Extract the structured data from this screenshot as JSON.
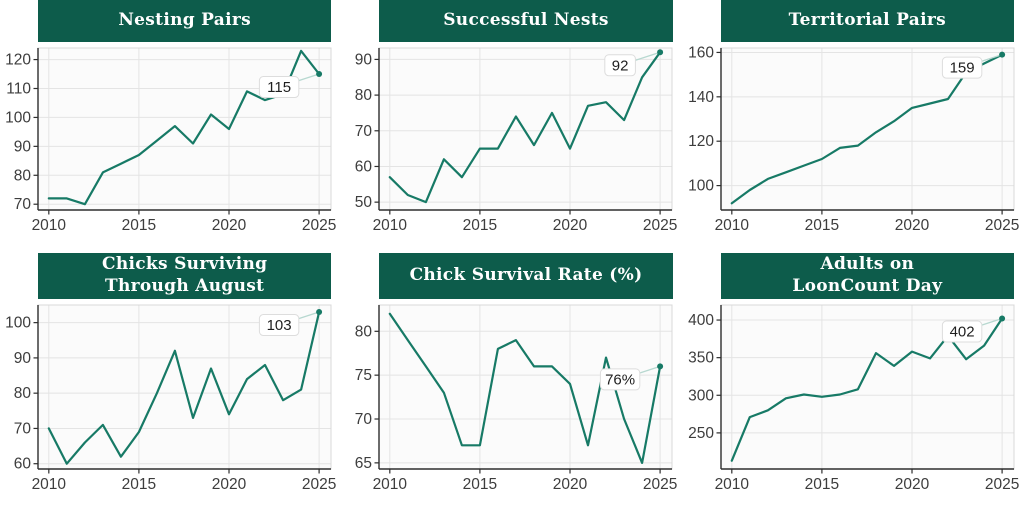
{
  "style": {
    "header_bg": "#0d5c4b",
    "header_text": "#ffffff",
    "line_color": "#177a66",
    "grid_color": "#e4e4e4",
    "plot_bg": "#fbfbfb",
    "plot_border": "#d8d8d8",
    "axis_color": "#2e2e2e",
    "tick_text": "#3d3d3d",
    "label_bg": "#ffffff",
    "label_border": "#dddddd",
    "label_text": "#1f1f1f",
    "connector": "#b7d8d0",
    "page_bg": "#ffffff"
  },
  "chart_data": [
    {
      "type": "line",
      "title": "Nesting Pairs",
      "x": [
        2010,
        2011,
        2012,
        2013,
        2014,
        2015,
        2016,
        2017,
        2018,
        2019,
        2020,
        2021,
        2022,
        2023,
        2024,
        2025
      ],
      "values": [
        72,
        72,
        70,
        81,
        84,
        87,
        92,
        97,
        91,
        101,
        96,
        109,
        106,
        108,
        123,
        115
      ],
      "end_label": "115",
      "xticks": [
        2010,
        2015,
        2020,
        2025
      ],
      "yticks": [
        70,
        80,
        90,
        100,
        110,
        120
      ],
      "xlim": [
        2009.4,
        2025.66
      ],
      "ylim": [
        68,
        124
      ],
      "grid": true,
      "legend": "none"
    },
    {
      "type": "line",
      "title": "Successful Nests",
      "x": [
        2010,
        2011,
        2012,
        2013,
        2014,
        2015,
        2016,
        2017,
        2018,
        2019,
        2020,
        2021,
        2022,
        2023,
        2024,
        2025
      ],
      "values": [
        57,
        52,
        50,
        62,
        57,
        65,
        65,
        74,
        66,
        75,
        65,
        77,
        78,
        73,
        85,
        92
      ],
      "end_label": "92",
      "xticks": [
        2010,
        2015,
        2020,
        2025
      ],
      "yticks": [
        50,
        60,
        70,
        80,
        90
      ],
      "xlim": [
        2009.4,
        2025.66
      ],
      "ylim": [
        47.8,
        93.2
      ],
      "grid": true,
      "legend": "none"
    },
    {
      "type": "line",
      "title": "Territorial Pairs",
      "x": [
        2010,
        2011,
        2012,
        2013,
        2014,
        2015,
        2016,
        2017,
        2018,
        2019,
        2020,
        2021,
        2022,
        2023,
        2024,
        2025
      ],
      "values": [
        92,
        98,
        103,
        106,
        109,
        112,
        117,
        118,
        124,
        129,
        135,
        137,
        139,
        151,
        155,
        159
      ],
      "end_label": "159",
      "xticks": [
        2010,
        2015,
        2020,
        2025
      ],
      "yticks": [
        100,
        120,
        140,
        160
      ],
      "xlim": [
        2009.4,
        2025.66
      ],
      "ylim": [
        89,
        162
      ],
      "grid": true,
      "legend": "none"
    },
    {
      "type": "line",
      "title": "Chicks Surviving\nThrough August",
      "x": [
        2010,
        2011,
        2012,
        2013,
        2014,
        2015,
        2016,
        2017,
        2018,
        2019,
        2020,
        2021,
        2022,
        2023,
        2024,
        2025
      ],
      "values": [
        70,
        60,
        66,
        71,
        62,
        69,
        80,
        92,
        73,
        87,
        74,
        84,
        88,
        78,
        81,
        103
      ],
      "end_label": "103",
      "xticks": [
        2010,
        2015,
        2020,
        2025
      ],
      "yticks": [
        60,
        70,
        80,
        90,
        100
      ],
      "xlim": [
        2009.4,
        2025.66
      ],
      "ylim": [
        58.5,
        105
      ],
      "grid": true,
      "legend": "none"
    },
    {
      "type": "line",
      "title": "Chick Survival Rate (%)",
      "x": [
        2010,
        2011,
        2012,
        2013,
        2014,
        2015,
        2016,
        2017,
        2018,
        2019,
        2020,
        2021,
        2022,
        2023,
        2024,
        2025
      ],
      "values": [
        82,
        79,
        76,
        73,
        67,
        67,
        78,
        79,
        76,
        76,
        74,
        67,
        77,
        70,
        65,
        76
      ],
      "end_label": "76%",
      "xticks": [
        2010,
        2015,
        2020,
        2025
      ],
      "yticks": [
        65,
        70,
        75,
        80
      ],
      "xlim": [
        2009.4,
        2025.66
      ],
      "ylim": [
        64.3,
        83
      ],
      "grid": true,
      "legend": "none"
    },
    {
      "type": "line",
      "title": "Adults on\nLoonCount Day",
      "x": [
        2010,
        2011,
        2012,
        2013,
        2014,
        2015,
        2016,
        2017,
        2018,
        2019,
        2020,
        2021,
        2022,
        2023,
        2024,
        2025
      ],
      "values": [
        213,
        271,
        280,
        296,
        301,
        298,
        301,
        308,
        356,
        339,
        358,
        349,
        379,
        348,
        366,
        402
      ],
      "end_label": "402",
      "xticks": [
        2010,
        2015,
        2020,
        2025
      ],
      "yticks": [
        250,
        300,
        350,
        400
      ],
      "xlim": [
        2009.4,
        2025.66
      ],
      "ylim": [
        202,
        420
      ],
      "grid": true,
      "legend": "none"
    }
  ]
}
